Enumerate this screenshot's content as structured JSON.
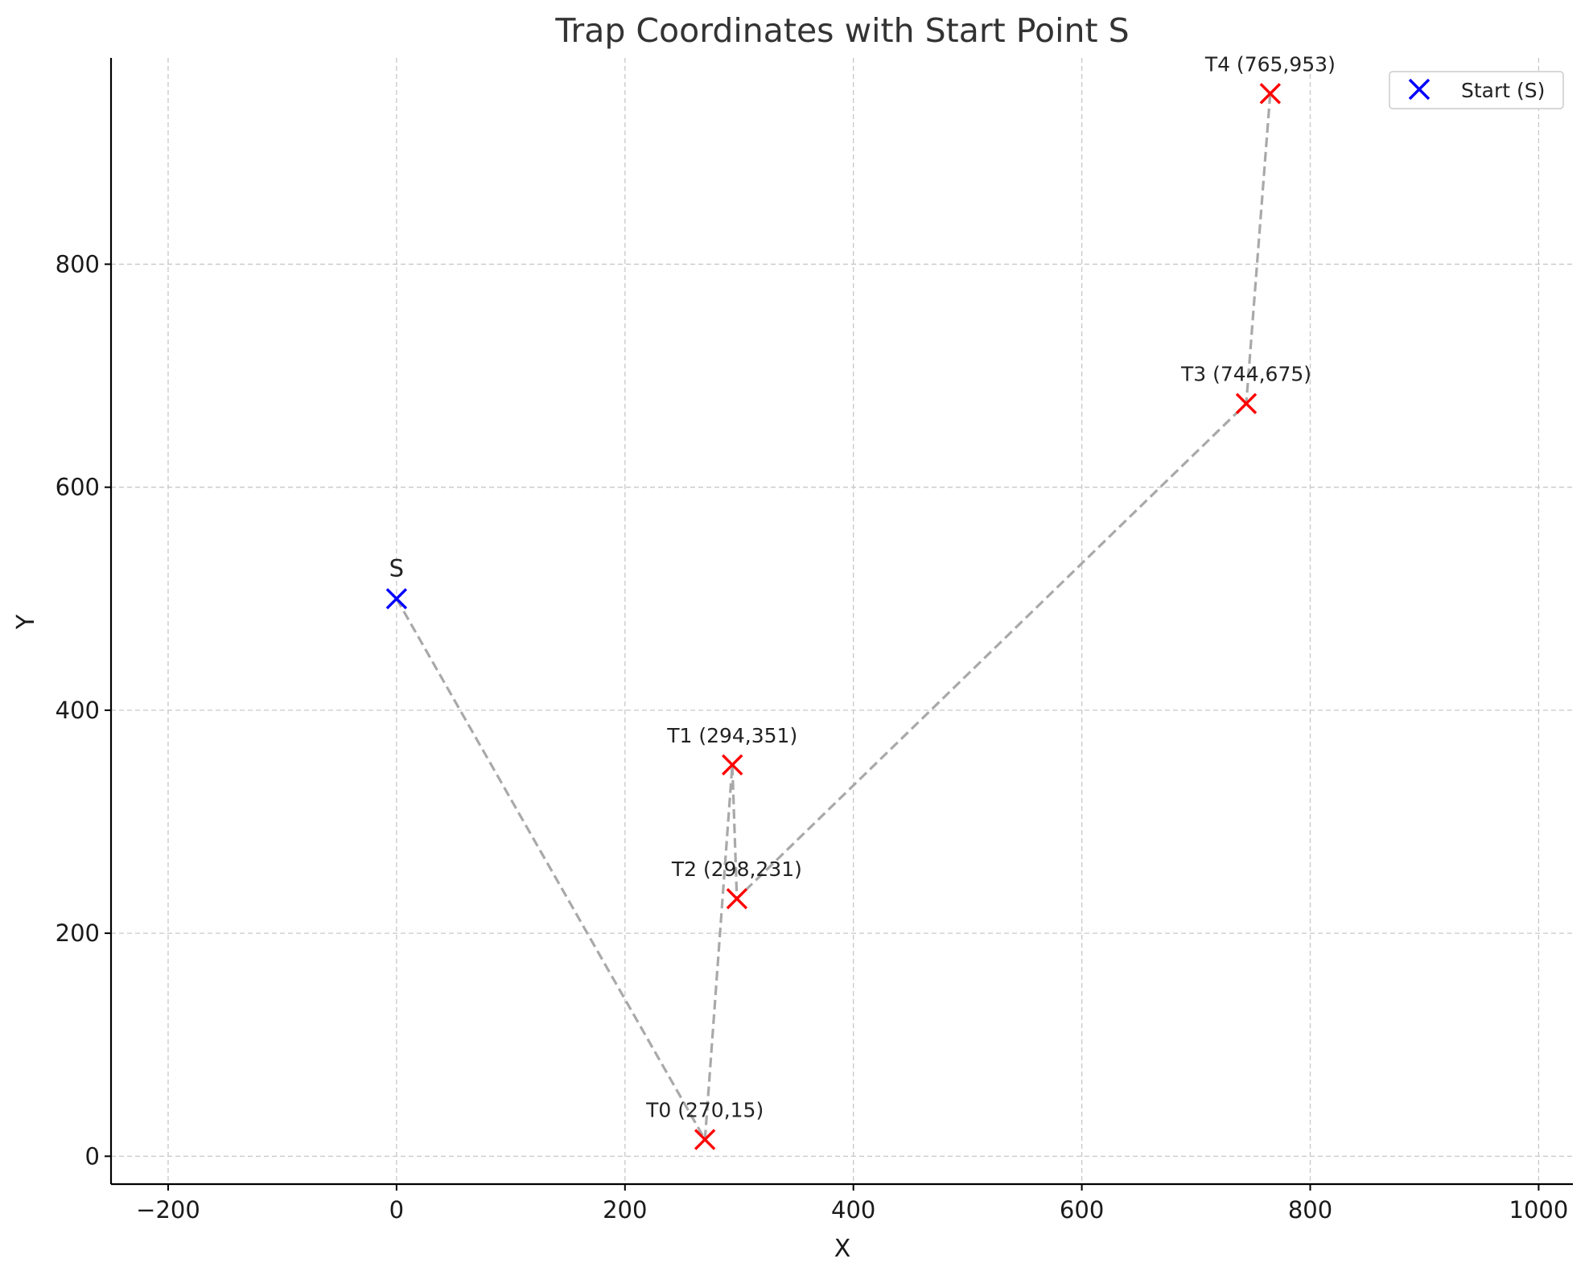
{
  "chart_data": {
    "type": "scatter",
    "title": "Trap Coordinates with Start Point S",
    "xlabel": "X",
    "ylabel": "Y",
    "xlim": [
      -250,
      1030
    ],
    "ylim": [
      -25,
      985
    ],
    "xticks": [
      -200,
      0,
      200,
      400,
      600,
      800,
      1000
    ],
    "yticks": [
      0,
      200,
      400,
      600,
      800
    ],
    "grid": true,
    "legend": {
      "placement": "top-right",
      "entries": [
        {
          "label": "Start (S)",
          "color": "#0000ff",
          "marker": "x"
        }
      ]
    },
    "colors": {
      "start": "#0000ff",
      "trap": "#ff0000",
      "path": "#a9a9a9"
    },
    "start": {
      "x": 0,
      "y": 500,
      "label": "S"
    },
    "traps": [
      {
        "x": 270,
        "y": 15,
        "label": "T0 (270,15)"
      },
      {
        "x": 294,
        "y": 351,
        "label": "T1 (294,351)"
      },
      {
        "x": 298,
        "y": 231,
        "label": "T2 (298,231)"
      },
      {
        "x": 744,
        "y": 675,
        "label": "T3 (744,675)"
      },
      {
        "x": 765,
        "y": 953,
        "label": "T4 (765,953)"
      }
    ],
    "path_order": [
      "S",
      "T0",
      "T1",
      "T2",
      "T3",
      "T4"
    ]
  }
}
